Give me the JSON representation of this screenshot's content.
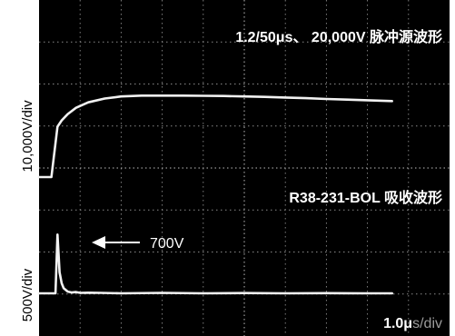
{
  "chart_data": [
    {
      "type": "line",
      "title": "1.2/50μs、 20,000V 脉冲源波形",
      "ylabel": "10,000V/div",
      "xlabel": "",
      "grid": true,
      "x": [
        0,
        0.3,
        0.45,
        0.55,
        0.7,
        0.9,
        1.2,
        1.6,
        2.0,
        2.5,
        3.0,
        3.5,
        4.0,
        4.5,
        5.0,
        5.5,
        6.0,
        6.5,
        7.0,
        7.5,
        8.0,
        8.6
      ],
      "series": [
        {
          "values": [
            0,
            0,
            12000,
            13500,
            15000,
            16500,
            17800,
            18700,
            19200,
            19400,
            19400,
            19400,
            19350,
            19300,
            19200,
            19100,
            18950,
            18800,
            18600,
            18450,
            18300,
            18100
          ]
        }
      ]
    },
    {
      "type": "line",
      "title": "R38-231-BOL 吸收波形",
      "ylabel": "500V/div",
      "xlabel": "1.0μs/div",
      "grid": true,
      "annotations": [
        {
          "text": "700V"
        }
      ],
      "x": [
        0,
        0.4,
        0.45,
        0.5,
        0.55,
        0.6,
        0.7,
        0.8,
        0.9,
        1.0,
        1.2,
        1.5,
        2.0,
        3.0,
        4.0,
        5.0,
        6.0,
        7.0,
        8.0,
        8.6
      ],
      "series": [
        {
          "values": [
            0,
            0,
            700,
            250,
            120,
            60,
            20,
            10,
            15,
            5,
            8,
            5,
            0,
            5,
            0,
            3,
            0,
            2,
            0,
            0
          ]
        }
      ]
    }
  ],
  "texts": {
    "top_title": "1.2/50μs、 20,000V 脉冲源波形",
    "bottom_title": "R38-231-BOL 吸收波形",
    "annotation": "700V",
    "ylabel_top": "10,000V/div",
    "ylabel_bottom": "500V/div",
    "xscale_value": "1.0μ",
    "xscale_unit": "s/div"
  }
}
